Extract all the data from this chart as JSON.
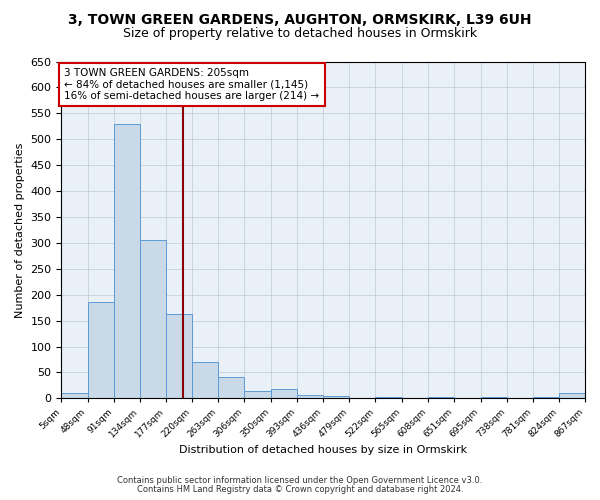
{
  "title": "3, TOWN GREEN GARDENS, AUGHTON, ORMSKIRK, L39 6UH",
  "subtitle": "Size of property relative to detached houses in Ormskirk",
  "xlabel": "Distribution of detached houses by size in Ormskirk",
  "ylabel": "Number of detached properties",
  "annotation_line1": "3 TOWN GREEN GARDENS: 205sqm",
  "annotation_line2": "← 84% of detached houses are smaller (1,145)",
  "annotation_line3": "16% of semi-detached houses are larger (214) →",
  "property_value": 205,
  "bar_color": "#c9d9e8",
  "bar_edge_color": "#5b9bd5",
  "vline_color": "#8b0000",
  "background_color": "#eaf0f8",
  "bin_edges": [
    5,
    48,
    91,
    134,
    177,
    220,
    263,
    306,
    350,
    393,
    436,
    479,
    522,
    565,
    608,
    651,
    695,
    738,
    781,
    824,
    867
  ],
  "bin_counts": [
    10,
    185,
    530,
    305,
    163,
    70,
    42,
    15,
    18,
    7,
    4,
    0,
    3,
    0,
    2,
    0,
    2,
    0,
    2,
    10
  ],
  "tick_labels": [
    "5sqm",
    "48sqm",
    "91sqm",
    "134sqm",
    "177sqm",
    "220sqm",
    "263sqm",
    "306sqm",
    "350sqm",
    "393sqm",
    "436sqm",
    "479sqm",
    "522sqm",
    "565sqm",
    "608sqm",
    "651sqm",
    "695sqm",
    "738sqm",
    "781sqm",
    "824sqm",
    "867sqm"
  ],
  "ylim": [
    0,
    650
  ],
  "yticks": [
    0,
    50,
    100,
    150,
    200,
    250,
    300,
    350,
    400,
    450,
    500,
    550,
    600,
    650
  ],
  "footer1": "Contains HM Land Registry data © Crown copyright and database right 2024.",
  "footer2": "Contains public sector information licensed under the Open Government Licence v3.0."
}
